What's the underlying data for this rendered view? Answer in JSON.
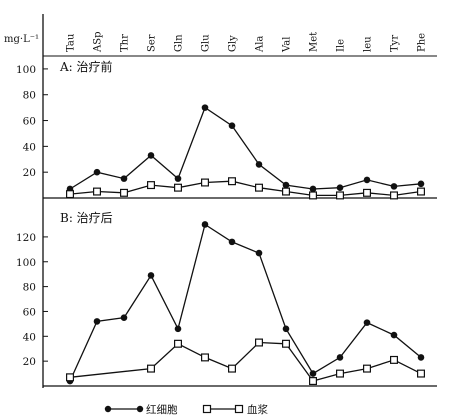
{
  "chart_data": [
    {
      "type": "line",
      "panel_label": "A: 治疗前",
      "ylabel": "mg·L⁻¹",
      "categories": [
        "Tau",
        "ASp",
        "Thr",
        "Ser",
        "Gln",
        "Glu",
        "Gly",
        "Ala",
        "Val",
        "Met",
        "Ile",
        "leu",
        "Tyr",
        "Phe"
      ],
      "yticks": [
        20,
        40,
        60,
        80,
        100
      ],
      "ylim": [
        0,
        110
      ],
      "grid": false,
      "series": [
        {
          "name": "红细胞",
          "marker": "filled-circle",
          "values": [
            7,
            20,
            15,
            33,
            15,
            70,
            56,
            26,
            10,
            7,
            8,
            14,
            9,
            11
          ]
        },
        {
          "name": "血浆",
          "marker": "open-square",
          "values": [
            3,
            5,
            4,
            10,
            8,
            12,
            13,
            8,
            5,
            2,
            2,
            4,
            2,
            5
          ]
        }
      ]
    },
    {
      "type": "line",
      "panel_label": "B: 治疗后",
      "categories": [
        "Tau",
        "ASp",
        "Thr",
        "Ser",
        "Gln",
        "Glu",
        "Gly",
        "Ala",
        "Val",
        "Met",
        "Ile",
        "leu",
        "Tyr",
        "Phe"
      ],
      "yticks": [
        20,
        40,
        60,
        80,
        100,
        120
      ],
      "ylim": [
        0,
        132
      ],
      "grid": false,
      "series": [
        {
          "name": "红细胞",
          "marker": "filled-circle",
          "values": [
            4,
            52,
            55,
            89,
            46,
            130,
            116,
            107,
            46,
            10,
            23,
            51,
            41,
            23
          ]
        },
        {
          "name": "血浆",
          "marker": "open-square",
          "values": [
            7,
            null,
            null,
            14,
            34,
            23,
            14,
            35,
            34,
            4,
            10,
            14,
            21,
            10
          ]
        }
      ]
    }
  ],
  "legend": {
    "position": "bottom",
    "items": [
      {
        "label": "红细胞",
        "marker": "filled-circle"
      },
      {
        "label": "血浆",
        "marker": "open-square"
      }
    ]
  }
}
